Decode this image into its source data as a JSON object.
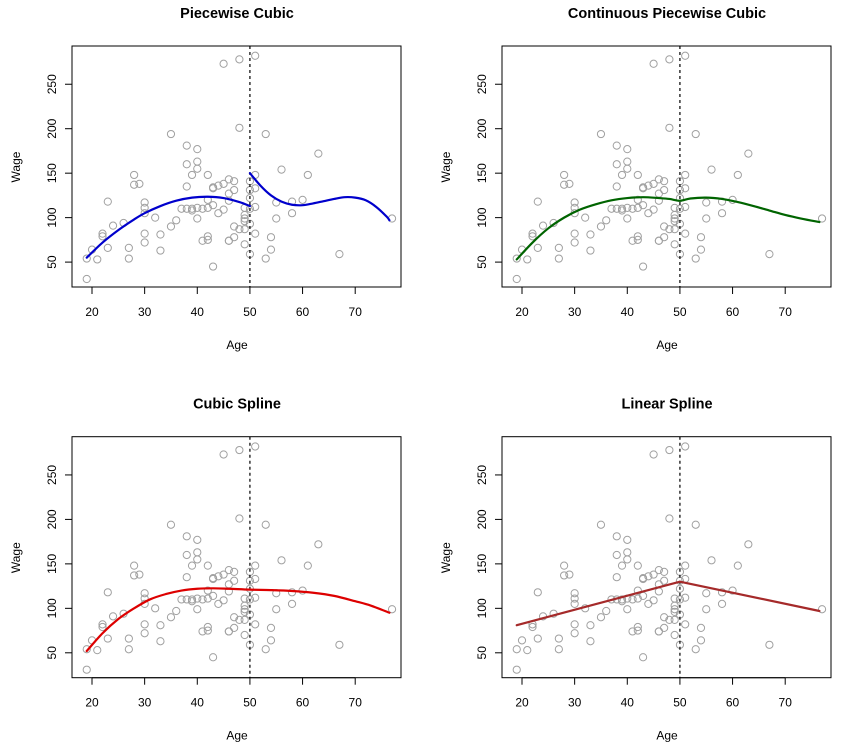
{
  "chart_data": [
    {
      "type": "scatter",
      "title": "Piecewise Cubic",
      "xlabel": "Age",
      "ylabel": "Wage",
      "fit_color": "#0000cc",
      "fit_segments": [
        [
          [
            19,
            55
          ],
          [
            22,
            72
          ],
          [
            25,
            86
          ],
          [
            28,
            98
          ],
          [
            30,
            105
          ],
          [
            33,
            113
          ],
          [
            36,
            119
          ],
          [
            39,
            122.5
          ],
          [
            42,
            123.5
          ],
          [
            45,
            122
          ],
          [
            48,
            117.5
          ],
          [
            50,
            113
          ]
        ],
        [
          [
            50,
            150
          ],
          [
            52,
            136
          ],
          [
            54,
            125
          ],
          [
            56,
            118
          ],
          [
            58,
            114.5
          ],
          [
            60,
            114
          ],
          [
            62,
            116
          ],
          [
            64,
            118.5
          ],
          [
            66,
            121
          ],
          [
            68,
            123
          ],
          [
            70,
            122.5
          ],
          [
            72,
            119.5
          ],
          [
            74,
            112
          ],
          [
            76,
            101
          ],
          [
            76.5,
            97
          ]
        ]
      ]
    },
    {
      "type": "scatter",
      "title": "Continuous Piecewise Cubic",
      "xlabel": "Age",
      "ylabel": "Wage",
      "fit_color": "#006400",
      "fit_segments": [
        [
          [
            19,
            53
          ],
          [
            22,
            72
          ],
          [
            25,
            88
          ],
          [
            28,
            100
          ],
          [
            31,
            109
          ],
          [
            34,
            115
          ],
          [
            37,
            119.5
          ],
          [
            40,
            122
          ],
          [
            43,
            123
          ],
          [
            46,
            122
          ],
          [
            48,
            121
          ],
          [
            50,
            119
          ],
          [
            52,
            121.5
          ],
          [
            55,
            122.5
          ],
          [
            58,
            121
          ],
          [
            61,
            117.5
          ],
          [
            64,
            113
          ],
          [
            67,
            108
          ],
          [
            70,
            103
          ],
          [
            73,
            99
          ],
          [
            76.5,
            95
          ]
        ]
      ]
    },
    {
      "type": "scatter",
      "title": "Cubic Spline",
      "xlabel": "Age",
      "ylabel": "Wage",
      "fit_color": "#dd0000",
      "fit_segments": [
        [
          [
            19,
            52
          ],
          [
            22,
            72
          ],
          [
            25,
            88
          ],
          [
            28,
            100
          ],
          [
            31,
            110
          ],
          [
            34,
            116
          ],
          [
            37,
            120
          ],
          [
            40,
            122
          ],
          [
            43,
            122.5
          ],
          [
            46,
            122
          ],
          [
            50,
            121
          ],
          [
            54,
            120.5
          ],
          [
            58,
            119.5
          ],
          [
            62,
            117.5
          ],
          [
            66,
            114
          ],
          [
            70,
            108
          ],
          [
            73,
            103
          ],
          [
            76.5,
            95
          ]
        ]
      ]
    },
    {
      "type": "scatter",
      "title": "Linear Spline",
      "xlabel": "Age",
      "ylabel": "Wage",
      "fit_color": "#a52a2a",
      "fit_segments": [
        [
          [
            19,
            81
          ],
          [
            50,
            130
          ],
          [
            76.5,
            97
          ]
        ]
      ]
    }
  ],
  "shared": {
    "xlim": [
      16.2,
      78.7
    ],
    "ylim": [
      22,
      293
    ],
    "xticks": [
      20,
      30,
      40,
      50,
      60,
      70
    ],
    "yticks": [
      50,
      100,
      150,
      200,
      250
    ],
    "knot": 50,
    "points": [
      [
        19,
        31
      ],
      [
        19,
        54
      ],
      [
        20,
        64
      ],
      [
        21,
        53
      ],
      [
        22,
        82
      ],
      [
        22,
        79
      ],
      [
        23,
        66
      ],
      [
        23,
        118
      ],
      [
        24,
        91
      ],
      [
        26,
        94
      ],
      [
        27,
        66
      ],
      [
        27,
        54
      ],
      [
        28,
        148
      ],
      [
        28,
        137
      ],
      [
        29,
        138
      ],
      [
        30,
        117
      ],
      [
        30,
        111
      ],
      [
        30,
        105
      ],
      [
        30,
        82
      ],
      [
        30,
        72
      ],
      [
        32,
        100
      ],
      [
        33,
        81
      ],
      [
        33,
        63
      ],
      [
        35,
        194
      ],
      [
        35,
        90
      ],
      [
        36,
        97
      ],
      [
        37,
        110
      ],
      [
        38,
        181
      ],
      [
        38,
        160
      ],
      [
        38,
        135
      ],
      [
        38,
        110
      ],
      [
        39,
        148
      ],
      [
        39,
        110
      ],
      [
        39,
        108
      ],
      [
        40,
        177
      ],
      [
        40,
        163
      ],
      [
        40,
        155
      ],
      [
        40,
        111
      ],
      [
        40,
        99
      ],
      [
        41,
        110
      ],
      [
        41,
        74
      ],
      [
        42,
        148
      ],
      [
        42,
        120
      ],
      [
        42,
        111
      ],
      [
        42,
        79
      ],
      [
        42,
        75
      ],
      [
        43,
        134
      ],
      [
        43,
        133
      ],
      [
        43,
        114
      ],
      [
        43,
        45
      ],
      [
        44,
        136
      ],
      [
        44,
        105
      ],
      [
        45,
        273
      ],
      [
        45,
        138
      ],
      [
        45,
        109
      ],
      [
        46,
        143
      ],
      [
        46,
        127
      ],
      [
        46,
        119
      ],
      [
        46,
        74
      ],
      [
        46,
        74
      ],
      [
        47,
        141
      ],
      [
        47,
        131
      ],
      [
        47,
        90
      ],
      [
        47,
        78
      ],
      [
        48,
        278
      ],
      [
        48,
        201
      ],
      [
        48,
        87
      ],
      [
        49,
        111
      ],
      [
        49,
        103
      ],
      [
        49,
        99
      ],
      [
        49,
        96
      ],
      [
        49,
        87
      ],
      [
        49,
        70
      ],
      [
        50,
        141
      ],
      [
        50,
        131
      ],
      [
        50,
        122
      ],
      [
        50,
        110
      ],
      [
        50,
        93
      ],
      [
        50,
        59
      ],
      [
        51,
        282
      ],
      [
        51,
        148
      ],
      [
        51,
        133
      ],
      [
        51,
        112
      ],
      [
        51,
        82
      ],
      [
        53,
        194
      ],
      [
        53,
        54
      ],
      [
        54,
        78
      ],
      [
        54,
        64
      ],
      [
        55,
        117
      ],
      [
        55,
        99
      ],
      [
        56,
        154
      ],
      [
        58,
        118
      ],
      [
        58,
        105
      ],
      [
        60,
        120
      ],
      [
        61,
        148
      ],
      [
        63,
        172
      ],
      [
        67,
        59
      ],
      [
        77,
        99
      ]
    ]
  }
}
